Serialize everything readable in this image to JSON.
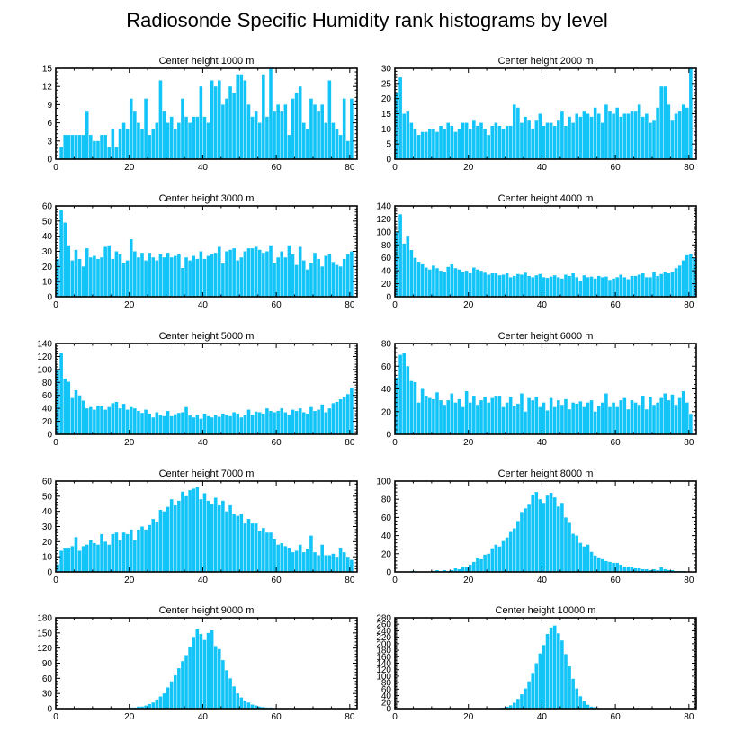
{
  "figure": {
    "title": "Radiosonde Specific Humidity rank histograms by level"
  },
  "chart_data": [
    {
      "type": "bar",
      "title": "Center height 1000 m",
      "xlim": [
        0,
        82
      ],
      "ylim": [
        0,
        15
      ],
      "xticks": [
        0,
        20,
        40,
        60,
        80
      ],
      "yticks": [
        0,
        3,
        6,
        9,
        12,
        15
      ],
      "values": [
        0,
        2,
        4,
        4,
        4,
        4,
        4,
        4,
        8,
        4,
        3,
        3,
        4,
        4,
        2,
        5,
        2,
        5,
        6,
        5,
        10,
        8,
        6,
        5,
        10,
        4,
        5,
        6,
        13,
        8,
        6,
        7,
        5,
        6,
        10,
        7,
        6,
        7,
        7,
        12,
        7,
        6,
        13,
        12,
        13,
        9,
        10,
        12,
        11,
        14,
        14,
        13,
        9,
        7,
        8,
        6,
        14,
        7,
        15,
        8,
        9,
        8,
        9,
        4,
        10,
        11,
        12,
        6,
        5,
        10,
        9,
        8,
        9,
        6,
        13,
        6,
        5,
        4,
        10,
        3,
        10
      ]
    },
    {
      "type": "bar",
      "title": "Center height 2000 m",
      "xlim": [
        0,
        82
      ],
      "ylim": [
        0,
        30
      ],
      "xticks": [
        0,
        20,
        40,
        60,
        80
      ],
      "yticks": [
        0,
        5,
        10,
        15,
        20,
        25,
        30
      ],
      "values": [
        22,
        27,
        15,
        16,
        12,
        10,
        8,
        9,
        9,
        10,
        10,
        9,
        11,
        10,
        12,
        11,
        9,
        10,
        12,
        12,
        10,
        13,
        11,
        12,
        10,
        8,
        11,
        12,
        11,
        10,
        11,
        11,
        18,
        17,
        12,
        14,
        13,
        10,
        13,
        15,
        11,
        12,
        12,
        11,
        13,
        16,
        11,
        14,
        12,
        15,
        14,
        16,
        15,
        14,
        17,
        15,
        12,
        18,
        16,
        15,
        17,
        14,
        15,
        15,
        16,
        16,
        18,
        14,
        15,
        12,
        13,
        17,
        24,
        24,
        18,
        13,
        15,
        16,
        18,
        17,
        30
      ]
    },
    {
      "type": "bar",
      "title": "Center height 3000 m",
      "xlim": [
        0,
        82
      ],
      "ylim": [
        0,
        60
      ],
      "xticks": [
        0,
        20,
        40,
        60,
        80
      ],
      "yticks": [
        0,
        10,
        20,
        30,
        40,
        50,
        60
      ],
      "values": [
        25,
        57,
        49,
        34,
        24,
        31,
        25,
        20,
        32,
        26,
        27,
        25,
        26,
        33,
        34,
        25,
        30,
        28,
        22,
        24,
        38,
        30,
        26,
        29,
        24,
        29,
        26,
        24,
        28,
        26,
        29,
        26,
        27,
        28,
        19,
        26,
        24,
        27,
        25,
        30,
        25,
        27,
        28,
        29,
        33,
        22,
        30,
        31,
        32,
        24,
        26,
        30,
        32,
        32,
        33,
        31,
        29,
        30,
        34,
        22,
        26,
        30,
        26,
        34,
        28,
        21,
        33,
        24,
        18,
        22,
        29,
        25,
        20,
        27,
        28,
        23,
        21,
        20,
        25,
        28,
        30
      ]
    },
    {
      "type": "bar",
      "title": "Center height 4000 m",
      "xlim": [
        0,
        82
      ],
      "ylim": [
        0,
        140
      ],
      "xticks": [
        0,
        20,
        40,
        60,
        80
      ],
      "yticks": [
        0,
        20,
        40,
        60,
        80,
        100,
        120,
        140
      ],
      "values": [
        100,
        127,
        82,
        94,
        72,
        60,
        54,
        50,
        45,
        42,
        48,
        44,
        40,
        38,
        46,
        50,
        44,
        42,
        38,
        40,
        36,
        45,
        42,
        40,
        37,
        34,
        36,
        36,
        33,
        34,
        36,
        30,
        32,
        35,
        34,
        37,
        32,
        30,
        33,
        35,
        30,
        29,
        31,
        33,
        30,
        28,
        34,
        32,
        36,
        30,
        25,
        33,
        30,
        31,
        28,
        32,
        30,
        31,
        26,
        28,
        30,
        34,
        30,
        27,
        32,
        32,
        34,
        36,
        30,
        30,
        38,
        32,
        35,
        38,
        36,
        38,
        44,
        48,
        56,
        64,
        66,
        60
      ]
    },
    {
      "type": "bar",
      "title": "Center height 5000 m",
      "xlim": [
        0,
        82
      ],
      "ylim": [
        0,
        140
      ],
      "xticks": [
        0,
        20,
        40,
        60,
        80
      ],
      "yticks": [
        0,
        20,
        40,
        60,
        80,
        100,
        120,
        140
      ],
      "values": [
        100,
        126,
        86,
        81,
        56,
        68,
        60,
        52,
        40,
        42,
        38,
        44,
        43,
        38,
        42,
        48,
        50,
        40,
        47,
        38,
        42,
        40,
        36,
        33,
        38,
        32,
        26,
        34,
        30,
        28,
        36,
        28,
        31,
        33,
        34,
        42,
        29,
        26,
        30,
        24,
        32,
        28,
        26,
        30,
        27,
        32,
        30,
        28,
        34,
        32,
        26,
        30,
        38,
        30,
        35,
        34,
        32,
        40,
        36,
        34,
        36,
        40,
        34,
        30,
        38,
        36,
        40,
        34,
        32,
        42,
        36,
        38,
        46,
        34,
        40,
        48,
        50,
        54,
        58,
        62,
        72
      ]
    },
    {
      "type": "bar",
      "title": "Center height 6000 m",
      "xlim": [
        0,
        82
      ],
      "ylim": [
        0,
        80
      ],
      "xticks": [
        0,
        20,
        40,
        60,
        80
      ],
      "yticks": [
        0,
        20,
        40,
        60,
        80
      ],
      "values": [
        50,
        70,
        72,
        60,
        47,
        46,
        28,
        40,
        34,
        32,
        31,
        37,
        30,
        26,
        30,
        36,
        28,
        31,
        24,
        38,
        28,
        34,
        26,
        30,
        33,
        28,
        32,
        34,
        34,
        24,
        28,
        33,
        25,
        27,
        36,
        20,
        32,
        30,
        33,
        24,
        28,
        21,
        32,
        24,
        30,
        26,
        31,
        22,
        28,
        27,
        29,
        24,
        28,
        30,
        20,
        25,
        28,
        36,
        24,
        28,
        24,
        30,
        32,
        22,
        30,
        28,
        26,
        34,
        22,
        33,
        26,
        28,
        32,
        36,
        30,
        35,
        26,
        32,
        38,
        28,
        18
      ]
    },
    {
      "type": "bar",
      "title": "Center height 7000 m",
      "xlim": [
        0,
        82
      ],
      "ylim": [
        0,
        60
      ],
      "xticks": [
        0,
        20,
        40,
        60,
        80
      ],
      "yticks": [
        0,
        10,
        20,
        30,
        40,
        50,
        60
      ],
      "values": [
        5,
        14,
        16,
        16,
        17,
        23,
        14,
        17,
        18,
        21,
        19,
        18,
        25,
        20,
        18,
        25,
        26,
        21,
        26,
        25,
        28,
        21,
        28,
        30,
        28,
        31,
        35,
        33,
        41,
        40,
        43,
        48,
        44,
        47,
        53,
        50,
        54,
        55,
        56,
        48,
        52,
        47,
        45,
        49,
        44,
        47,
        40,
        44,
        38,
        37,
        38,
        32,
        35,
        32,
        32,
        27,
        29,
        26,
        26,
        22,
        18,
        19,
        17,
        16,
        13,
        14,
        18,
        13,
        15,
        24,
        13,
        11,
        18,
        11,
        11,
        12,
        10,
        16,
        13,
        10,
        8
      ]
    },
    {
      "type": "bar",
      "title": "Center height 8000 m",
      "xlim": [
        0,
        82
      ],
      "ylim": [
        0,
        100
      ],
      "xticks": [
        0,
        20,
        40,
        60,
        80
      ],
      "yticks": [
        0,
        20,
        40,
        60,
        80,
        100
      ],
      "values": [
        0,
        0,
        0,
        0,
        1,
        1,
        0,
        0,
        0,
        0,
        1,
        2,
        1,
        2,
        1,
        2,
        4,
        3,
        6,
        5,
        8,
        11,
        15,
        14,
        19,
        20,
        26,
        30,
        28,
        34,
        38,
        44,
        48,
        56,
        66,
        70,
        74,
        85,
        88,
        80,
        76,
        84,
        87,
        82,
        72,
        76,
        60,
        54,
        42,
        40,
        32,
        28,
        30,
        22,
        18,
        16,
        14,
        12,
        11,
        10,
        10,
        8,
        6,
        6,
        5,
        4,
        4,
        3,
        3,
        2,
        3,
        2,
        5,
        3,
        2,
        2,
        1,
        1,
        1,
        0,
        0
      ]
    },
    {
      "type": "bar",
      "title": "Center height 9000 m",
      "xlim": [
        0,
        82
      ],
      "ylim": [
        0,
        180
      ],
      "xticks": [
        0,
        20,
        40,
        60,
        80
      ],
      "yticks": [
        0,
        30,
        60,
        90,
        120,
        150,
        180
      ],
      "values": [
        0,
        0,
        0,
        0,
        0,
        0,
        0,
        0,
        0,
        0,
        0,
        0,
        0,
        0,
        0,
        0,
        0,
        0,
        0,
        1,
        2,
        2,
        4,
        4,
        6,
        9,
        12,
        18,
        24,
        30,
        42,
        54,
        66,
        80,
        94,
        106,
        122,
        142,
        157,
        148,
        136,
        150,
        155,
        124,
        118,
        96,
        76,
        60,
        44,
        30,
        22,
        16,
        12,
        8,
        6,
        4,
        3,
        2,
        2,
        1,
        1,
        1,
        0,
        0,
        0,
        0,
        0,
        0,
        1,
        0,
        0,
        0,
        0,
        0,
        0,
        0,
        0,
        0,
        0,
        0,
        0
      ]
    },
    {
      "type": "bar",
      "title": "Center height 10000 m",
      "xlim": [
        0,
        82
      ],
      "ylim": [
        0,
        280
      ],
      "xticks": [
        0,
        20,
        40,
        60,
        80
      ],
      "yticks": [
        0,
        20,
        40,
        60,
        80,
        100,
        120,
        140,
        160,
        180,
        200,
        220,
        240,
        260,
        280
      ],
      "values": [
        0,
        0,
        0,
        0,
        0,
        0,
        0,
        0,
        0,
        0,
        0,
        0,
        0,
        0,
        0,
        0,
        0,
        0,
        0,
        0,
        0,
        0,
        0,
        0,
        0,
        0,
        0,
        1,
        2,
        3,
        6,
        10,
        18,
        30,
        44,
        62,
        84,
        110,
        140,
        170,
        196,
        230,
        250,
        256,
        232,
        210,
        168,
        130,
        92,
        62,
        38,
        22,
        12,
        6,
        4,
        2,
        1,
        1,
        0,
        0,
        0,
        0,
        0,
        0,
        0,
        0,
        0,
        0,
        0,
        0,
        0,
        0,
        0,
        0,
        0,
        0,
        0,
        0,
        0,
        0,
        0
      ]
    }
  ]
}
